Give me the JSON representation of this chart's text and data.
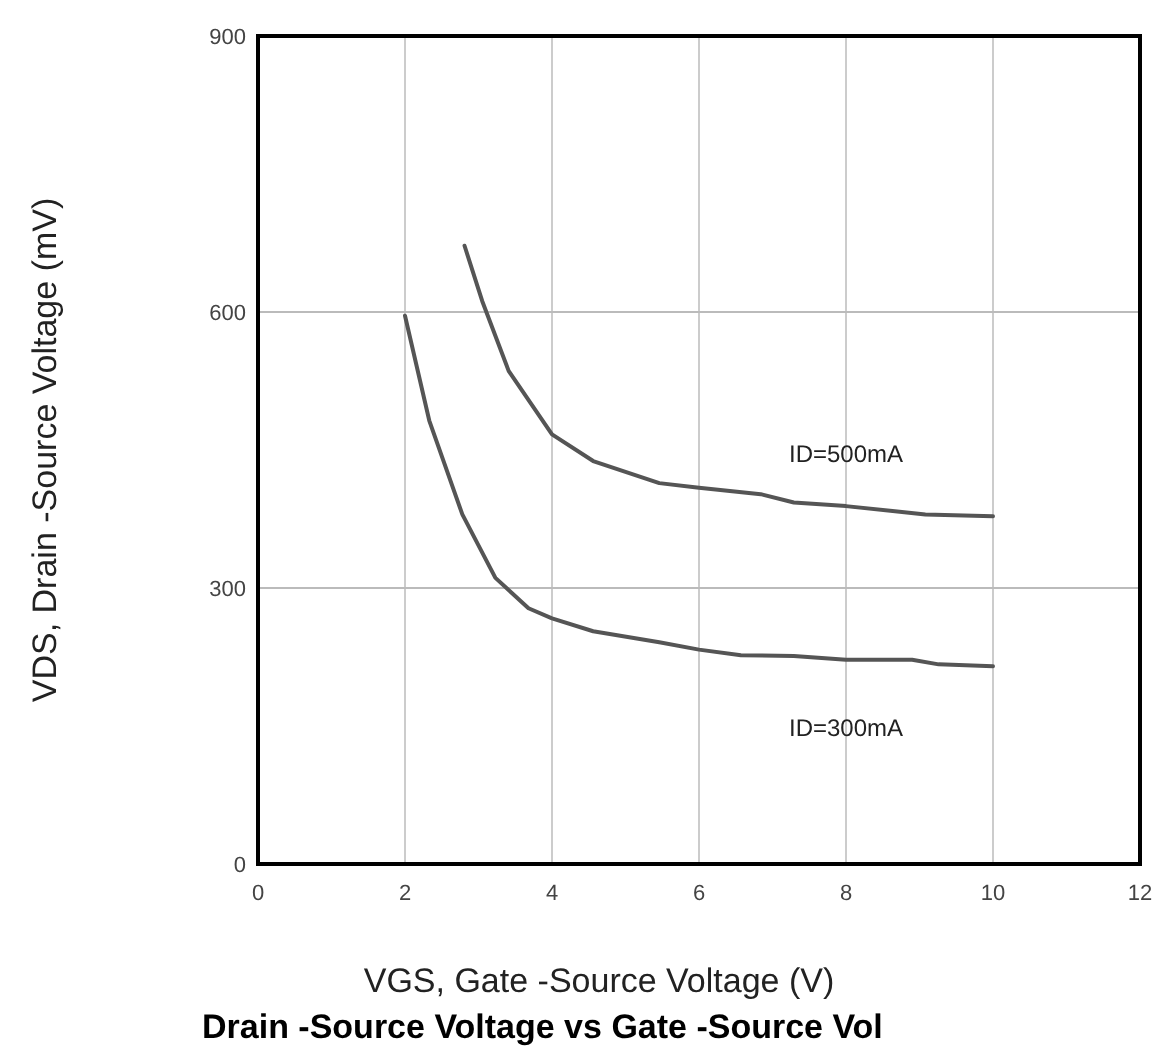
{
  "chart_data": {
    "type": "line",
    "title": "Drain -Source Voltage vs Gate -Source Vol",
    "xlabel": "VGS, Gate -Source Voltage (V)",
    "ylabel": "VDS, Drain -Source Voltage (mV)",
    "xlim": [
      0,
      12
    ],
    "xticks": [
      0,
      2,
      4,
      6,
      8,
      10,
      12
    ],
    "ylim": [
      0,
      900
    ],
    "yticks": [
      0,
      300,
      600,
      900
    ],
    "grid": true,
    "marker": "none",
    "line_style": "solid",
    "series": [
      {
        "name": "ID=500mA",
        "color": "#555555",
        "x": [
          2.81,
          3.05,
          3.41,
          4,
          4.56,
          5.46,
          6,
          6.84,
          7.29,
          8,
          9.08,
          10
        ],
        "values": [
          672,
          612,
          536,
          467,
          438,
          414,
          409,
          402,
          393,
          389,
          380,
          378
        ]
      },
      {
        "name": "ID=300mA",
        "color": "#555555",
        "x": [
          2,
          2.33,
          2.78,
          3.23,
          3.68,
          4,
          4.56,
          5.46,
          6,
          6.57,
          7.29,
          8,
          8.9,
          9.26,
          10
        ],
        "values": [
          596,
          482,
          380,
          311,
          278,
          267,
          253,
          241,
          233,
          227,
          226,
          222,
          222,
          217,
          215
        ]
      }
    ]
  }
}
